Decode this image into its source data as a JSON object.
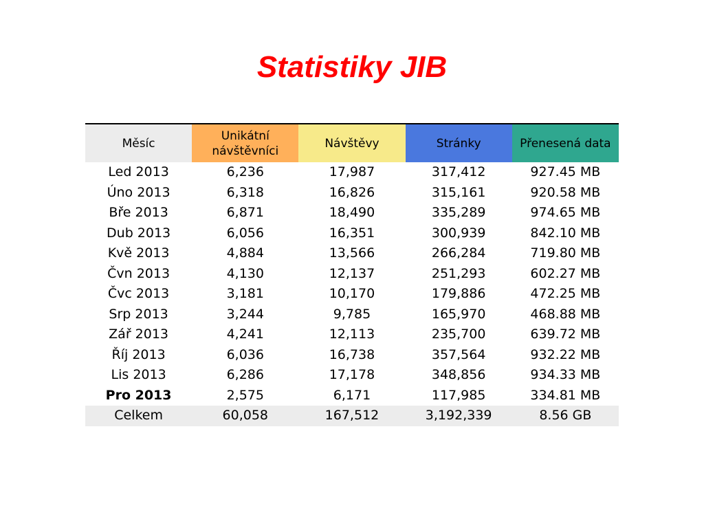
{
  "title": "Statistiky JIB",
  "header": {
    "columns": [
      {
        "label": "Měsíc",
        "color": "#ececec"
      },
      {
        "label": "Unikátní návštěvníci",
        "color": "#ffb05a"
      },
      {
        "label": "Návštěvy",
        "color": "#f7ea8a"
      },
      {
        "label": "Stránky",
        "color": "#4a78de"
      },
      {
        "label": "Přenesená data",
        "color": "#2fa78f"
      }
    ]
  },
  "rows": [
    {
      "month": "Led 2013",
      "unique": "6,236",
      "visits": "17,987",
      "pages": "317,412",
      "data": "927.45 MB",
      "bold": false
    },
    {
      "month": "Úno 2013",
      "unique": "6,318",
      "visits": "16,826",
      "pages": "315,161",
      "data": "920.58 MB",
      "bold": false
    },
    {
      "month": "Bře 2013",
      "unique": "6,871",
      "visits": "18,490",
      "pages": "335,289",
      "data": "974.65 MB",
      "bold": false
    },
    {
      "month": "Dub 2013",
      "unique": "6,056",
      "visits": "16,351",
      "pages": "300,939",
      "data": "842.10 MB",
      "bold": false
    },
    {
      "month": "Kvě 2013",
      "unique": "4,884",
      "visits": "13,566",
      "pages": "266,284",
      "data": "719.80 MB",
      "bold": false
    },
    {
      "month": "Čvn 2013",
      "unique": "4,130",
      "visits": "12,137",
      "pages": "251,293",
      "data": "602.27 MB",
      "bold": false
    },
    {
      "month": "Čvc 2013",
      "unique": "3,181",
      "visits": "10,170",
      "pages": "179,886",
      "data": "472.25 MB",
      "bold": false
    },
    {
      "month": "Srp 2013",
      "unique": "3,244",
      "visits": "9,785",
      "pages": "165,970",
      "data": "468.88 MB",
      "bold": false
    },
    {
      "month": "Zář 2013",
      "unique": "4,241",
      "visits": "12,113",
      "pages": "235,700",
      "data": "639.72 MB",
      "bold": false
    },
    {
      "month": "Říj 2013",
      "unique": "6,036",
      "visits": "16,738",
      "pages": "357,564",
      "data": "932.22 MB",
      "bold": false
    },
    {
      "month": "Lis 2013",
      "unique": "6,286",
      "visits": "17,178",
      "pages": "348,856",
      "data": "934.33 MB",
      "bold": false
    },
    {
      "month": "Pro 2013",
      "unique": "2,575",
      "visits": "6,171",
      "pages": "117,985",
      "data": "334.81 MB",
      "bold": true
    }
  ],
  "total": {
    "month": "Celkem",
    "unique": "60,058",
    "visits": "167,512",
    "pages": "3,192,339",
    "data": "8.56 GB"
  }
}
